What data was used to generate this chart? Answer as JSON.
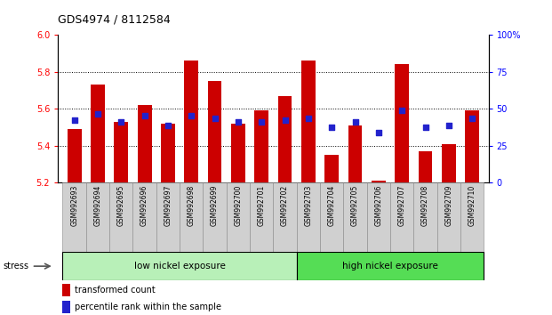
{
  "title": "GDS4974 / 8112584",
  "samples": [
    "GSM992693",
    "GSM992694",
    "GSM992695",
    "GSM992696",
    "GSM992697",
    "GSM992698",
    "GSM992699",
    "GSM992700",
    "GSM992701",
    "GSM992702",
    "GSM992703",
    "GSM992704",
    "GSM992705",
    "GSM992706",
    "GSM992707",
    "GSM992708",
    "GSM992709",
    "GSM992710"
  ],
  "bar_values": [
    5.49,
    5.73,
    5.53,
    5.62,
    5.52,
    5.86,
    5.75,
    5.52,
    5.59,
    5.67,
    5.86,
    5.35,
    5.51,
    5.21,
    5.84,
    5.37,
    5.41,
    5.59
  ],
  "dot_values": [
    5.54,
    5.57,
    5.53,
    5.56,
    5.51,
    5.56,
    5.55,
    5.53,
    5.53,
    5.54,
    5.55,
    5.5,
    5.53,
    5.47,
    5.59,
    5.5,
    5.51,
    5.55
  ],
  "bar_color": "#cc0000",
  "dot_color": "#2222cc",
  "y_min": 5.2,
  "y_max": 6.0,
  "y_ticks": [
    5.2,
    5.4,
    5.6,
    5.8,
    6.0
  ],
  "y_right_ticks": [
    0,
    25,
    50,
    75,
    100
  ],
  "y_right_labels": [
    "0",
    "25",
    "50",
    "75",
    "100%"
  ],
  "group_labels": [
    "low nickel exposure",
    "high nickel exposure"
  ],
  "low_count": 10,
  "stress_label": "stress",
  "legend_bar": "transformed count",
  "legend_dot": "percentile rank within the sample",
  "bg_color_low": "#b8f0b8",
  "bg_color_high": "#55dd55",
  "tick_label_bg": "#d0d0d0"
}
